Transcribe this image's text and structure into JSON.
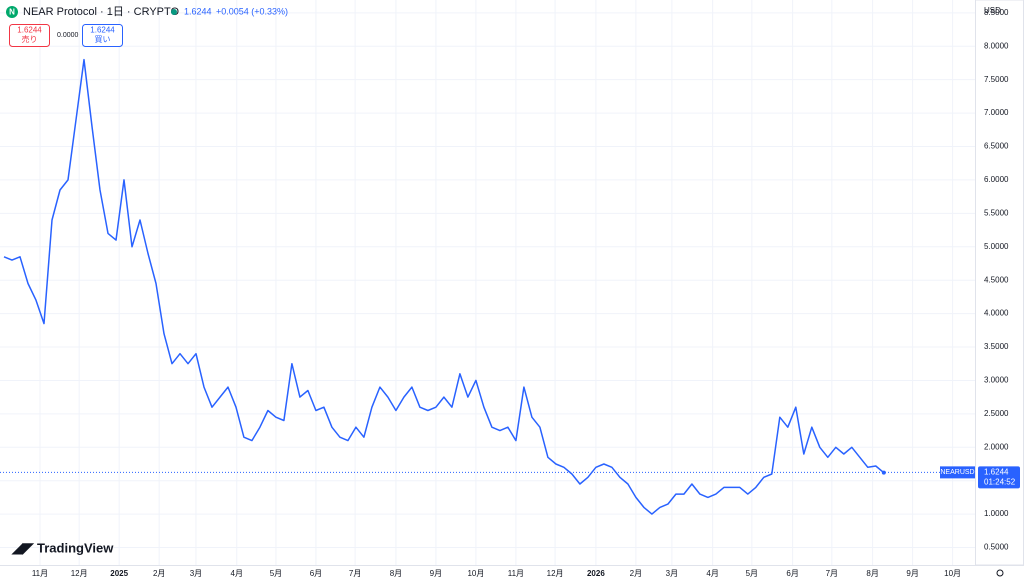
{
  "chart_data": {
    "type": "line",
    "title": "NEAR Protocol · 1日 · CRYPTO",
    "symbol": "NEARUSD",
    "currency": "USD",
    "last_price": 1.6244,
    "change": "+0.0054 (+0.33%)",
    "spread": "0.0000",
    "sell_label": "売り",
    "buy_label": "買い",
    "countdown": "01:24:52",
    "brand": "TradingView",
    "color": "#2962ff",
    "grid": true,
    "values": [
      4.85,
      4.8,
      4.85,
      4.45,
      4.2,
      3.85,
      5.4,
      5.85,
      6.0,
      6.9,
      7.8,
      6.8,
      5.85,
      5.2,
      5.1,
      6.0,
      5.0,
      5.4,
      4.9,
      4.45,
      3.7,
      3.25,
      3.4,
      3.25,
      3.4,
      2.9,
      2.6,
      2.75,
      2.9,
      2.6,
      2.15,
      2.1,
      2.3,
      2.55,
      2.45,
      2.4,
      3.25,
      2.75,
      2.85,
      2.55,
      2.6,
      2.3,
      2.15,
      2.1,
      2.3,
      2.15,
      2.6,
      2.9,
      2.75,
      2.55,
      2.75,
      2.9,
      2.6,
      2.55,
      2.6,
      2.75,
      2.6,
      3.1,
      2.75,
      3.0,
      2.6,
      2.3,
      2.25,
      2.3,
      2.1,
      2.9,
      2.45,
      2.3,
      1.85,
      1.75,
      1.7,
      1.6,
      1.45,
      1.55,
      1.7,
      1.75,
      1.7,
      1.55,
      1.45,
      1.25,
      1.1,
      1.0,
      1.1,
      1.15,
      1.3,
      1.3,
      1.45,
      1.3,
      1.25,
      1.3,
      1.4,
      1.4,
      1.4,
      1.3,
      1.4,
      1.55,
      1.6,
      2.45,
      2.3,
      2.6,
      1.9,
      2.3,
      2.0,
      1.85,
      2.0,
      1.9,
      2.0,
      1.85,
      1.7,
      1.72,
      1.62
    ],
    "xlim": [
      -0.5,
      121.4
    ],
    "xticks": [
      {
        "value": 4.5,
        "label": "11月"
      },
      {
        "value": 9.4,
        "label": "12月"
      },
      {
        "value": 14.4,
        "label": "2025"
      },
      {
        "value": 19.4,
        "label": "2月"
      },
      {
        "value": 24,
        "label": "3月"
      },
      {
        "value": 29.1,
        "label": "4月"
      },
      {
        "value": 34,
        "label": "5月"
      },
      {
        "value": 39,
        "label": "6月"
      },
      {
        "value": 43.9,
        "label": "7月"
      },
      {
        "value": 49,
        "label": "8月"
      },
      {
        "value": 54,
        "label": "9月"
      },
      {
        "value": 59,
        "label": "10月"
      },
      {
        "value": 64,
        "label": "11月"
      },
      {
        "value": 68.9,
        "label": "12月"
      },
      {
        "value": 74,
        "label": "2026"
      },
      {
        "value": 79,
        "label": "2月"
      },
      {
        "value": 83.5,
        "label": "3月"
      },
      {
        "value": 88.6,
        "label": "4月"
      },
      {
        "value": 93.5,
        "label": "5月"
      },
      {
        "value": 98.6,
        "label": "6月"
      },
      {
        "value": 103.5,
        "label": "7月"
      },
      {
        "value": 108.6,
        "label": "8月"
      },
      {
        "value": 113.6,
        "label": "9月"
      },
      {
        "value": 118.6,
        "label": "10月"
      }
    ],
    "ylim": [
      0.2385,
      8.6923
    ],
    "yticks": [
      {
        "value": 0.5,
        "label": "0.5000"
      },
      {
        "value": 1,
        "label": "1.0000"
      },
      {
        "value": 1.5,
        "label": "1.5000"
      },
      {
        "value": 2,
        "label": "2.0000"
      },
      {
        "value": 2.5,
        "label": "2.5000"
      },
      {
        "value": 3,
        "label": "3.0000"
      },
      {
        "value": 3.5,
        "label": "3.5000"
      },
      {
        "value": 4,
        "label": "4.0000"
      },
      {
        "value": 4.5,
        "label": "4.5000"
      },
      {
        "value": 5,
        "label": "5.0000"
      },
      {
        "value": 5.5,
        "label": "5.5000"
      },
      {
        "value": 6,
        "label": "6.0000"
      },
      {
        "value": 6.5,
        "label": "6.5000"
      },
      {
        "value": 7,
        "label": "7.0000"
      },
      {
        "value": 7.5,
        "label": "7.5000"
      },
      {
        "value": 8,
        "label": "8.0000"
      },
      {
        "value": 8.5,
        "label": "8.5000"
      }
    ]
  }
}
